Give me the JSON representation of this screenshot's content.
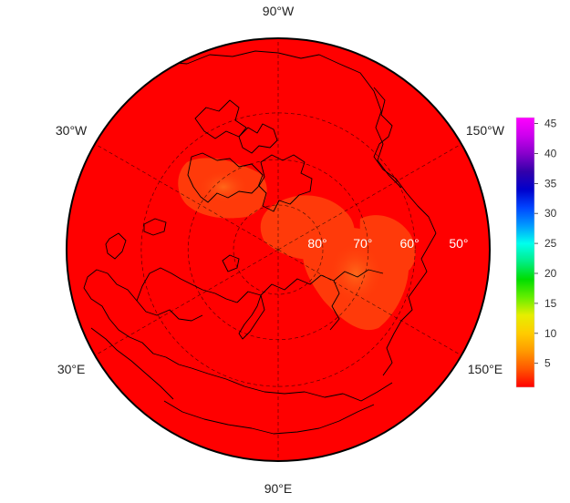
{
  "map": {
    "projection": "north-polar-stereographic",
    "field_colors": {
      "base": "#ff0000",
      "enhanced": "#ff3a0a",
      "high": "#ff5a14"
    },
    "longitude_labels": [
      {
        "text": "90°W",
        "lon": -90
      },
      {
        "text": "150°W",
        "lon": -150
      },
      {
        "text": "150°E",
        "lon": 150
      },
      {
        "text": "90°E",
        "lon": 90
      },
      {
        "text": "30°E",
        "lon": 30
      },
      {
        "text": "30°W",
        "lon": -30
      }
    ],
    "latitude_labels": [
      {
        "text": "80°",
        "lat": 80
      },
      {
        "text": "70°",
        "lat": 70
      },
      {
        "text": "60°",
        "lat": 60
      },
      {
        "text": "50°",
        "lat": 50
      }
    ],
    "parallels": [
      80,
      70,
      60
    ],
    "meridians": [
      -150,
      -90,
      -30,
      30,
      90,
      150
    ]
  },
  "colorbar": {
    "ticks": [
      "45",
      "40",
      "35",
      "30",
      "25",
      "20",
      "15",
      "10",
      "5"
    ],
    "tick_values": [
      45,
      40,
      35,
      30,
      25,
      20,
      15,
      10,
      5
    ],
    "range": [
      1,
      46
    ],
    "colors": [
      "#ff0000",
      "#ff5500",
      "#ff9900",
      "#ffcc00",
      "#e6ee00",
      "#66ee00",
      "#00dd00",
      "#00ee88",
      "#00ffee",
      "#0099ff",
      "#0044ff",
      "#0000cc",
      "#3300aa",
      "#8800cc",
      "#cc00ee",
      "#ff00ff"
    ]
  }
}
